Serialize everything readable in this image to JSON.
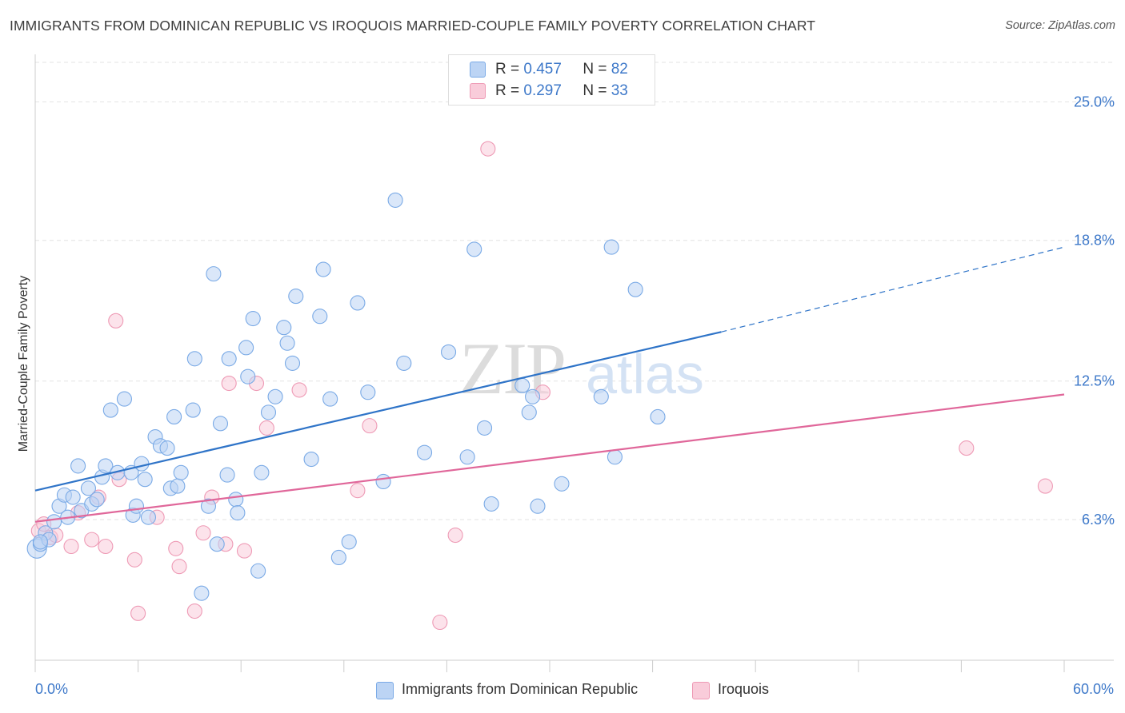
{
  "title": "IMMIGRANTS FROM DOMINICAN REPUBLIC VS IROQUOIS MARRIED-COUPLE FAMILY POVERTY CORRELATION CHART",
  "source": "Source: ZipAtlas.com",
  "watermark": {
    "zip": "ZIP",
    "atlas": "atlas"
  },
  "legend": {
    "r_label": "R =",
    "n_label": "N =",
    "rows": [
      {
        "name": "Immigrants from Dominican Republic",
        "r": "0.457",
        "n": "82"
      },
      {
        "name": "Iroquois",
        "r": "0.297",
        "n": "33"
      }
    ]
  },
  "colors": {
    "blue_fill": "#bcd4f4",
    "blue_stroke": "#7aaae6",
    "blue_line": "#2f74c8",
    "pink_fill": "#f9ccda",
    "pink_stroke": "#ee9ab5",
    "pink_line": "#e0679a",
    "tick_label": "#3d78c9",
    "grid": "#e3e3e3"
  },
  "chart_data": {
    "type": "scatter",
    "title": "IMMIGRANTS FROM DOMINICAN REPUBLIC VS IROQUOIS MARRIED-COUPLE FAMILY POVERTY CORRELATION CHART",
    "xlabel": "",
    "ylabel": "Married-Couple Family Poverty",
    "xlim": [
      0,
      60
    ],
    "ylim": [
      0,
      26.7
    ],
    "x_tick_labels": [
      "0.0%",
      "60.0%"
    ],
    "y_ticks": [
      6.3,
      12.5,
      18.8,
      25.0
    ],
    "y_tick_labels": [
      "6.3%",
      "12.5%",
      "18.8%",
      "25.0%"
    ],
    "grid": "horizontal dashed",
    "legend_position": "top-center",
    "series": [
      {
        "name": "Immigrants from Dominican Republic",
        "points": [
          [
            0.1,
            5.0
          ],
          [
            0.3,
            5.2
          ],
          [
            0.6,
            5.7
          ],
          [
            0.8,
            5.4
          ],
          [
            1.1,
            6.2
          ],
          [
            1.4,
            6.9
          ],
          [
            1.7,
            7.4
          ],
          [
            1.9,
            6.4
          ],
          [
            2.2,
            7.3
          ],
          [
            2.5,
            8.7
          ],
          [
            2.7,
            6.7
          ],
          [
            3.1,
            7.7
          ],
          [
            3.3,
            7.0
          ],
          [
            3.6,
            7.2
          ],
          [
            3.9,
            8.2
          ],
          [
            4.1,
            8.7
          ],
          [
            4.4,
            11.2
          ],
          [
            4.8,
            8.4
          ],
          [
            5.2,
            11.7
          ],
          [
            5.6,
            8.4
          ],
          [
            5.7,
            6.5
          ],
          [
            5.9,
            6.9
          ],
          [
            6.2,
            8.8
          ],
          [
            6.4,
            8.1
          ],
          [
            6.6,
            6.4
          ],
          [
            7.0,
            10.0
          ],
          [
            7.3,
            9.6
          ],
          [
            7.7,
            9.5
          ],
          [
            7.9,
            7.7
          ],
          [
            8.1,
            10.9
          ],
          [
            8.3,
            7.8
          ],
          [
            8.5,
            8.4
          ],
          [
            9.2,
            11.2
          ],
          [
            9.3,
            13.5
          ],
          [
            9.7,
            3.0
          ],
          [
            10.1,
            6.9
          ],
          [
            10.4,
            17.3
          ],
          [
            10.6,
            5.2
          ],
          [
            10.8,
            10.6
          ],
          [
            11.2,
            8.3
          ],
          [
            11.3,
            13.5
          ],
          [
            11.7,
            7.2
          ],
          [
            11.8,
            6.6
          ],
          [
            12.3,
            14.0
          ],
          [
            12.4,
            12.7
          ],
          [
            12.7,
            15.3
          ],
          [
            13.0,
            4.0
          ],
          [
            13.2,
            8.4
          ],
          [
            13.6,
            11.1
          ],
          [
            14.0,
            11.8
          ],
          [
            14.5,
            14.9
          ],
          [
            14.7,
            14.2
          ],
          [
            15.0,
            13.3
          ],
          [
            15.2,
            16.3
          ],
          [
            16.1,
            9.0
          ],
          [
            16.6,
            15.4
          ],
          [
            16.8,
            17.5
          ],
          [
            17.2,
            11.7
          ],
          [
            17.7,
            4.6
          ],
          [
            18.3,
            5.3
          ],
          [
            18.8,
            16.0
          ],
          [
            19.4,
            12.0
          ],
          [
            20.3,
            8.0
          ],
          [
            21.0,
            20.6
          ],
          [
            21.5,
            13.3
          ],
          [
            22.7,
            9.3
          ],
          [
            24.1,
            13.8
          ],
          [
            25.2,
            9.1
          ],
          [
            25.6,
            18.4
          ],
          [
            26.2,
            10.4
          ],
          [
            26.6,
            7.0
          ],
          [
            28.4,
            12.3
          ],
          [
            28.8,
            11.1
          ],
          [
            29.0,
            11.8
          ],
          [
            29.3,
            6.9
          ],
          [
            30.7,
            7.9
          ],
          [
            33.0,
            11.8
          ],
          [
            33.6,
            18.5
          ],
          [
            33.8,
            9.1
          ],
          [
            35.0,
            16.6
          ],
          [
            36.3,
            10.9
          ],
          [
            0.3,
            5.3
          ]
        ]
      },
      {
        "name": "Iroquois",
        "points": [
          [
            0.2,
            5.8
          ],
          [
            0.5,
            6.1
          ],
          [
            0.9,
            5.5
          ],
          [
            1.2,
            5.6
          ],
          [
            2.1,
            5.1
          ],
          [
            2.5,
            6.6
          ],
          [
            3.3,
            5.4
          ],
          [
            3.7,
            7.3
          ],
          [
            4.1,
            5.1
          ],
          [
            4.7,
            15.2
          ],
          [
            4.9,
            8.1
          ],
          [
            5.8,
            4.5
          ],
          [
            6.0,
            2.1
          ],
          [
            7.1,
            6.4
          ],
          [
            8.2,
            5.0
          ],
          [
            8.4,
            4.2
          ],
          [
            9.3,
            2.2
          ],
          [
            9.8,
            5.7
          ],
          [
            10.3,
            7.3
          ],
          [
            11.1,
            5.2
          ],
          [
            11.3,
            12.4
          ],
          [
            12.2,
            4.9
          ],
          [
            12.9,
            12.4
          ],
          [
            13.5,
            10.4
          ],
          [
            15.4,
            12.1
          ],
          [
            18.8,
            7.6
          ],
          [
            19.5,
            10.5
          ],
          [
            23.6,
            1.7
          ],
          [
            24.5,
            5.6
          ],
          [
            26.4,
            22.9
          ],
          [
            29.6,
            12.0
          ],
          [
            54.3,
            9.5
          ],
          [
            58.9,
            7.8
          ]
        ]
      }
    ],
    "trend_lines": [
      {
        "series": "Immigrants from Dominican Republic",
        "start": [
          0,
          7.6
        ],
        "end": [
          40,
          14.7
        ],
        "dashed_end": [
          60,
          18.5
        ]
      },
      {
        "series": "Iroquois",
        "start": [
          0,
          6.2
        ],
        "end": [
          60,
          11.9
        ]
      }
    ]
  }
}
